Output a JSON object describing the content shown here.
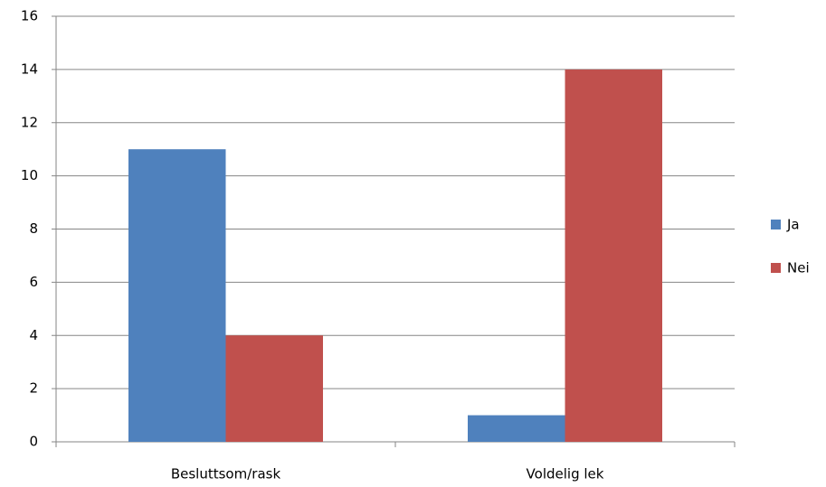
{
  "chart_data": {
    "type": "bar",
    "categories": [
      "Beslutt­som/rask",
      "Voldelig lek"
    ],
    "series": [
      {
        "name": "Ja",
        "color": "#4f81bd",
        "values": [
          11,
          1
        ]
      },
      {
        "name": "Nei",
        "color": "#c0504d",
        "values": [
          4,
          14
        ]
      }
    ],
    "ylim": [
      0,
      16
    ],
    "yticks": [
      0,
      2,
      4,
      6,
      8,
      10,
      12,
      14,
      16
    ],
    "grid": true,
    "legend": "right"
  }
}
